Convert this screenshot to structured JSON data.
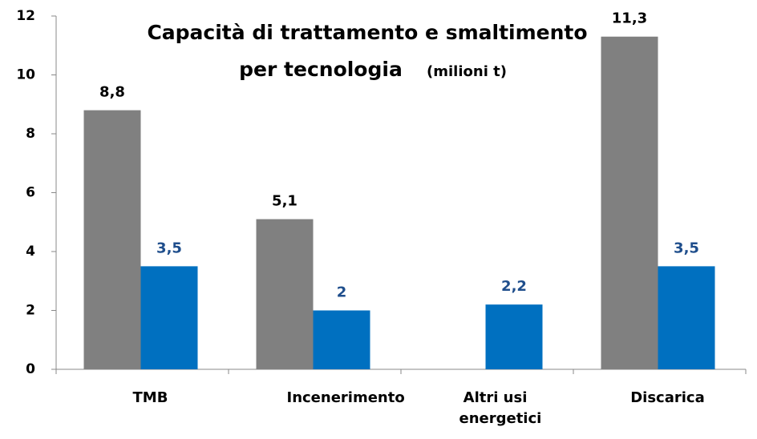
{
  "chart_data": {
    "type": "bar",
    "title": [
      "Capacità di trattamento e smaltimento",
      "per tecnologia"
    ],
    "unit": "(milioni t)",
    "categories": [
      "TMB",
      "Incenerimento",
      "Altri usi energetici",
      "Discarica"
    ],
    "series": [
      {
        "color": "#808080",
        "label_color": "#000000",
        "values": [
          8.8,
          5.1,
          null,
          11.3
        ],
        "value_labels": [
          "8,8",
          "5,1",
          null,
          "11,3"
        ]
      },
      {
        "color": "#0070c0",
        "label_color": "#1f4e8c",
        "values": [
          3.5,
          2,
          2.2,
          3.5
        ],
        "value_labels": [
          "3,5",
          "2",
          "2,2",
          "3,5"
        ]
      }
    ],
    "ylim": [
      0,
      12
    ],
    "yticks": [
      0,
      2,
      4,
      6,
      8,
      10,
      12
    ],
    "grid": false
  }
}
